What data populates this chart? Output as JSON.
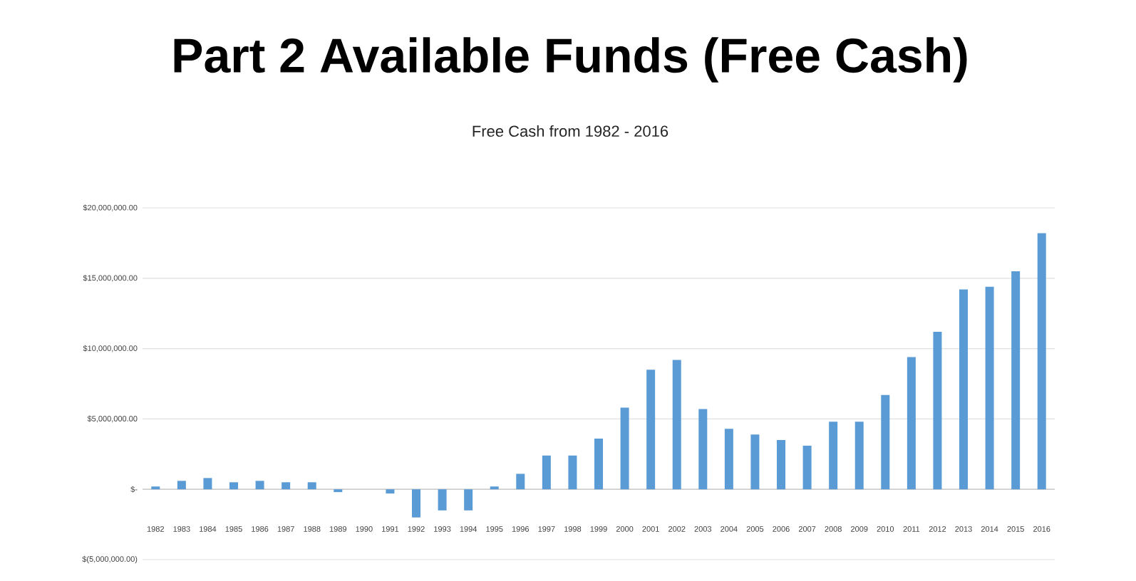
{
  "chart_data": {
    "type": "bar",
    "title": "Part 2 Available Funds (Free Cash)",
    "subtitle": "Free Cash from 1982 - 2016",
    "categories": [
      "1982",
      "1983",
      "1984",
      "1985",
      "1986",
      "1987",
      "1988",
      "1989",
      "1990",
      "1991",
      "1992",
      "1993",
      "1994",
      "1995",
      "1996",
      "1997",
      "1998",
      "1999",
      "2000",
      "2001",
      "2002",
      "2003",
      "2004",
      "2005",
      "2006",
      "2007",
      "2008",
      "2009",
      "2010",
      "2011",
      "2012",
      "2013",
      "2014",
      "2015",
      "2016"
    ],
    "values": [
      200000,
      600000,
      800000,
      500000,
      600000,
      500000,
      500000,
      -200000,
      0,
      -300000,
      -2000000,
      -1500000,
      -1500000,
      200000,
      1100000,
      2400000,
      2400000,
      3600000,
      5800000,
      8500000,
      9200000,
      5700000,
      4300000,
      3900000,
      3500000,
      3100000,
      4800000,
      4800000,
      6700000,
      9400000,
      11200000,
      14200000,
      14400000,
      15500000,
      18200000
    ],
    "color": "#5b9bd5",
    "ylim": [
      -5000000,
      20000000
    ],
    "yticks": [
      {
        "value": -5000000,
        "label": "$(5,000,000.00)"
      },
      {
        "value": 0,
        "label": "$-"
      },
      {
        "value": 5000000,
        "label": "$5,000,000.00"
      },
      {
        "value": 10000000,
        "label": "$10,000,000.00"
      },
      {
        "value": 15000000,
        "label": "$15,000,000.00"
      },
      {
        "value": 20000000,
        "label": "$20,000,000.00"
      }
    ],
    "grid": "y"
  }
}
